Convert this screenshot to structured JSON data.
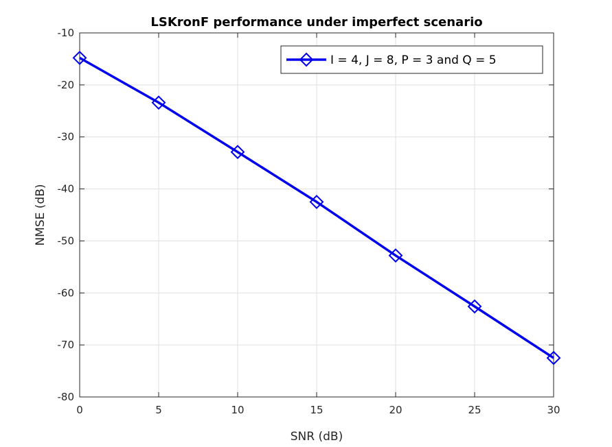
{
  "chart_data": {
    "type": "line",
    "title": "LSKronF performance under imperfect scenario",
    "xlabel": "SNR (dB)",
    "ylabel": "NMSE (dB)",
    "xlim": [
      0,
      30
    ],
    "ylim": [
      -80,
      -10
    ],
    "xticks": [
      0,
      5,
      10,
      15,
      20,
      25,
      30
    ],
    "yticks": [
      -80,
      -70,
      -60,
      -50,
      -40,
      -30,
      -20,
      -10
    ],
    "grid": true,
    "legend_position": "top-right",
    "series": [
      {
        "name": "I = 4, J = 8, P = 3 and Q = 5",
        "color": "#0000ee",
        "marker": "diamond",
        "x": [
          0,
          5,
          10,
          15,
          20,
          25,
          30
        ],
        "y": [
          -14.8,
          -23.4,
          -32.9,
          -42.5,
          -52.8,
          -62.6,
          -72.5
        ]
      }
    ]
  }
}
